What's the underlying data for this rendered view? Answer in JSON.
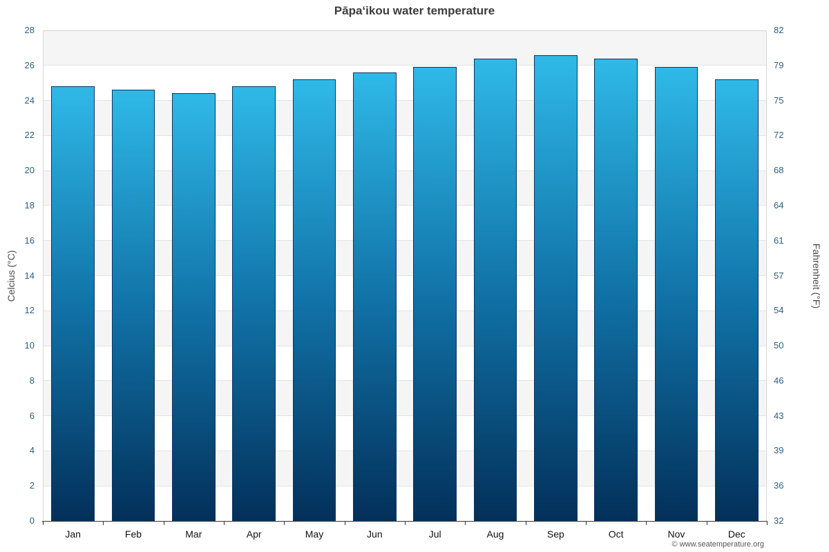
{
  "title": "Pāpaʻikou water temperature",
  "footer": "© www.seatemperature.org",
  "chart_data": {
    "type": "bar",
    "title": "Pāpaʻikou water temperature",
    "categories": [
      "Jan",
      "Feb",
      "Mar",
      "Apr",
      "May",
      "Jun",
      "Jul",
      "Aug",
      "Sep",
      "Oct",
      "Nov",
      "Dec"
    ],
    "values": [
      24.8,
      24.6,
      24.4,
      24.8,
      25.2,
      25.6,
      25.9,
      26.4,
      26.6,
      26.4,
      25.9,
      25.2
    ],
    "series_name": "Water temperature (°C)",
    "xlabel": "",
    "ylabel_left": "Celcius (°C)",
    "ylabel_right": "Fahrenheit (°F)",
    "ylim": [
      0,
      28
    ],
    "ytick_step": 2,
    "yticks_celsius": [
      0,
      2,
      4,
      6,
      8,
      10,
      12,
      14,
      16,
      18,
      20,
      22,
      24,
      26,
      28
    ],
    "yticks_fahrenheit": [
      32,
      36,
      39,
      43,
      46,
      50,
      54,
      57,
      61,
      64,
      68,
      72,
      75,
      79,
      82
    ],
    "grid": true,
    "legend": "none",
    "colors": {
      "bar_gradient_top": "#2fb9e7",
      "bar_gradient_mid": "#1173a8",
      "bar_gradient_bottom": "#03305a",
      "bar_border": "#0b3560",
      "band_fill": "#f5f5f5",
      "gridline": "#e2e2e2",
      "axis_line": "#333333"
    }
  }
}
